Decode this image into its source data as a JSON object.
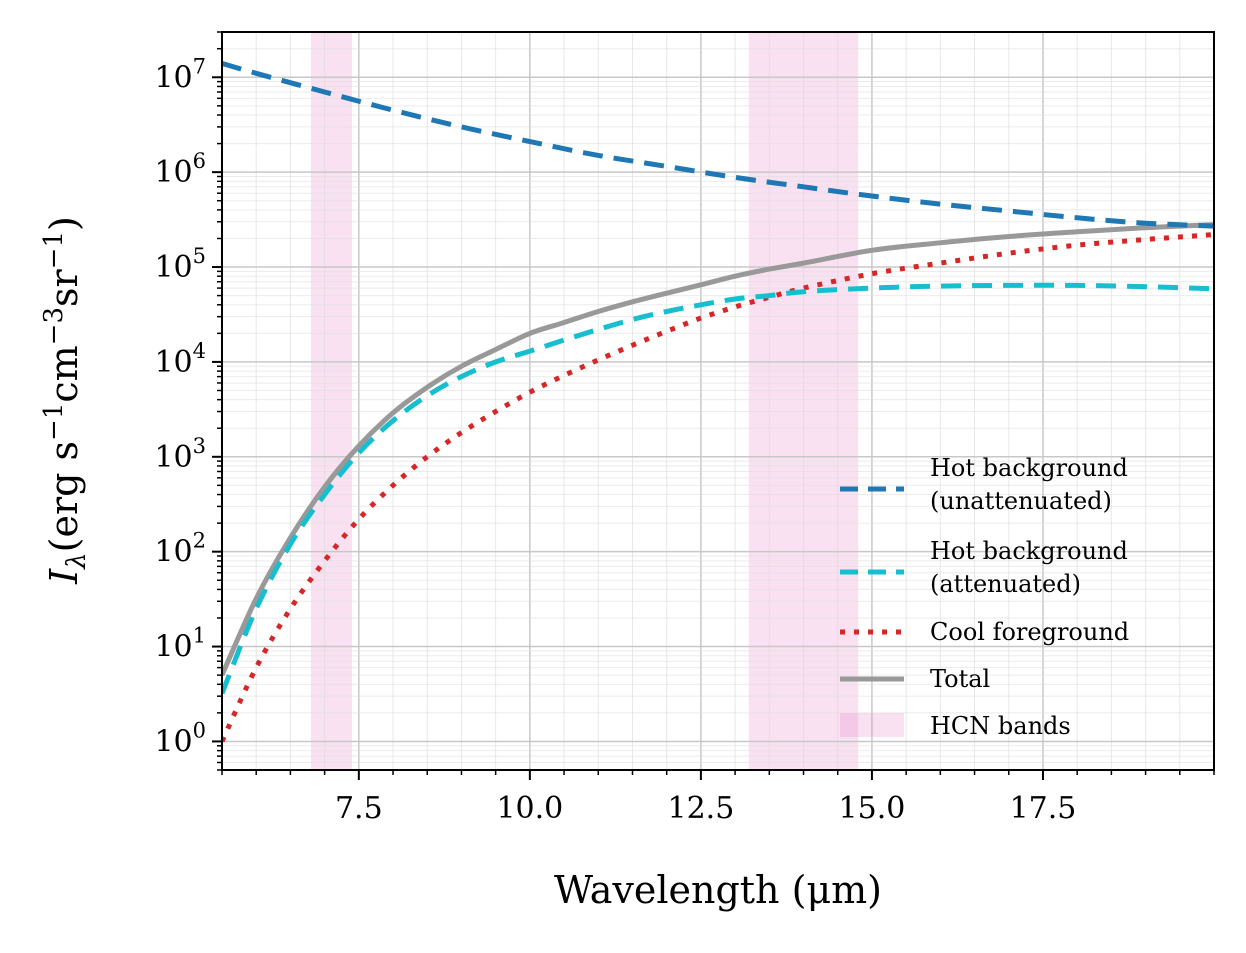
{
  "chart_data": {
    "type": "line",
    "xlabel": "Wavelength (μm)",
    "ylabel": {
      "symbol": "I",
      "subscript": "λ",
      "open": "(erg s",
      "exp1": "−1",
      "cm": "cm",
      "exp2": "−3",
      "sr": "sr",
      "exp3": "−1",
      "close": ")"
    },
    "xlim": [
      5.5,
      20.0
    ],
    "ylim": [
      0.5,
      30000000
    ],
    "yscale": "log",
    "grid": true,
    "legend_position": "lower-right",
    "xticks": [
      {
        "value": 7.5,
        "label": "7.5"
      },
      {
        "value": 10.0,
        "label": "10.0"
      },
      {
        "value": 12.5,
        "label": "12.5"
      },
      {
        "value": 15.0,
        "label": "15.0"
      },
      {
        "value": 17.5,
        "label": "17.5"
      }
    ],
    "yticks": [
      {
        "value": 1,
        "base": "10",
        "exp": "0"
      },
      {
        "value": 10,
        "base": "10",
        "exp": "1"
      },
      {
        "value": 100,
        "base": "10",
        "exp": "2"
      },
      {
        "value": 1000,
        "base": "10",
        "exp": "3"
      },
      {
        "value": 10000,
        "base": "10",
        "exp": "4"
      },
      {
        "value": 100000,
        "base": "10",
        "exp": "5"
      },
      {
        "value": 1000000,
        "base": "10",
        "exp": "6"
      },
      {
        "value": 10000000,
        "base": "10",
        "exp": "7"
      }
    ],
    "bands": {
      "name": "HCN bands",
      "color": "#e377c2",
      "ranges": [
        [
          6.8,
          7.4
        ],
        [
          13.2,
          14.8
        ]
      ]
    },
    "series": [
      {
        "name": "Hot background\n(unattenuated)",
        "color": "#1f77b4",
        "style": "dashed",
        "x": [
          5.5,
          6.0,
          7.0,
          8.0,
          9.0,
          10.0,
          11.0,
          12.0,
          13.0,
          14.0,
          15.0,
          16.0,
          17.0,
          18.0,
          19.0,
          20.0
        ],
        "y": [
          14000000,
          11000000,
          7000000,
          4500000,
          3000000,
          2100000,
          1500000,
          1150000,
          880000,
          700000,
          560000,
          460000,
          390000,
          330000,
          290000,
          270000
        ]
      },
      {
        "name": "Hot background\n(attenuated)",
        "color": "#17becf",
        "style": "dashed",
        "x": [
          5.5,
          6.0,
          6.5,
          7.0,
          7.5,
          8.0,
          8.5,
          9.0,
          9.5,
          10.0,
          10.5,
          11.0,
          11.5,
          12.0,
          12.5,
          13.0,
          13.5,
          14.0,
          15.0,
          16.0,
          17.0,
          18.0,
          19.0,
          20.0
        ],
        "y": [
          3.2,
          25,
          120,
          400,
          1100,
          2400,
          4400,
          7000,
          10000,
          13000,
          17000,
          22000,
          28000,
          34000,
          40000,
          46000,
          50000,
          55000,
          60000,
          63000,
          64000,
          64000,
          62000,
          59000
        ]
      },
      {
        "name": "Cool foreground",
        "color": "#d62728",
        "style": "dotted",
        "x": [
          5.5,
          6.0,
          6.5,
          7.0,
          7.5,
          8.0,
          8.5,
          9.0,
          9.5,
          10.0,
          10.5,
          11.0,
          11.5,
          12.0,
          12.5,
          13.0,
          13.5,
          14.0,
          15.0,
          16.0,
          17.0,
          18.0,
          19.0,
          20.0
        ],
        "y": [
          1.0,
          6,
          25,
          80,
          220,
          500,
          1000,
          1800,
          3000,
          4800,
          7200,
          10500,
          15000,
          21000,
          29000,
          38000,
          48000,
          60000,
          85000,
          110000,
          140000,
          170000,
          195000,
          220000
        ]
      },
      {
        "name": "Total",
        "color": "#999999",
        "style": "solid",
        "x": [
          5.5,
          6.0,
          6.5,
          7.0,
          7.5,
          8.0,
          8.5,
          9.0,
          9.5,
          10.0,
          10.5,
          11.0,
          11.5,
          12.0,
          12.5,
          13.0,
          13.5,
          14.0,
          15.0,
          16.0,
          17.0,
          18.0,
          19.0,
          20.0
        ],
        "y": [
          5,
          32,
          140,
          480,
          1300,
          2900,
          5400,
          9000,
          13500,
          20000,
          26000,
          34000,
          43000,
          53000,
          65000,
          80000,
          95000,
          110000,
          150000,
          180000,
          210000,
          235000,
          260000,
          280000
        ]
      }
    ]
  }
}
